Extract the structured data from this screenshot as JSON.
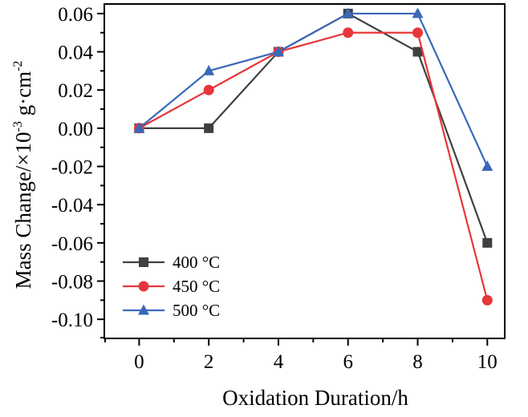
{
  "chart_data": {
    "type": "line",
    "title": "",
    "xlabel": "Oxidation Duration/h",
    "ylabel": {
      "base": "Mass Change/×10",
      "exp1": "-3",
      "mid": " g·cm",
      "exp2": "-2"
    },
    "x": [
      0,
      2,
      4,
      6,
      8,
      10
    ],
    "xlim": [
      -1,
      10.5
    ],
    "ylim": [
      -0.11,
      0.065
    ],
    "xticks": [
      "0",
      "2",
      "4",
      "6",
      "8",
      "10"
    ],
    "yticks": [
      "0.06",
      "0.04",
      "0.02",
      "0.00",
      "-0.02",
      "-0.04",
      "-0.06",
      "-0.08",
      "-0.10"
    ],
    "grid": false,
    "legend_position": "bottom-left",
    "series": [
      {
        "name": "400 °C",
        "marker": "square",
        "color": "#404040",
        "values": [
          0.0,
          0.0,
          0.04,
          0.06,
          0.04,
          -0.06
        ]
      },
      {
        "name": "450 °C",
        "marker": "circle",
        "color": "#e8363a",
        "values": [
          0.0,
          0.02,
          0.04,
          0.05,
          0.05,
          -0.09
        ]
      },
      {
        "name": "500 °C",
        "marker": "triangle",
        "color": "#3a68b7",
        "values": [
          0.0,
          0.03,
          0.04,
          0.06,
          0.06,
          -0.02
        ]
      }
    ]
  }
}
